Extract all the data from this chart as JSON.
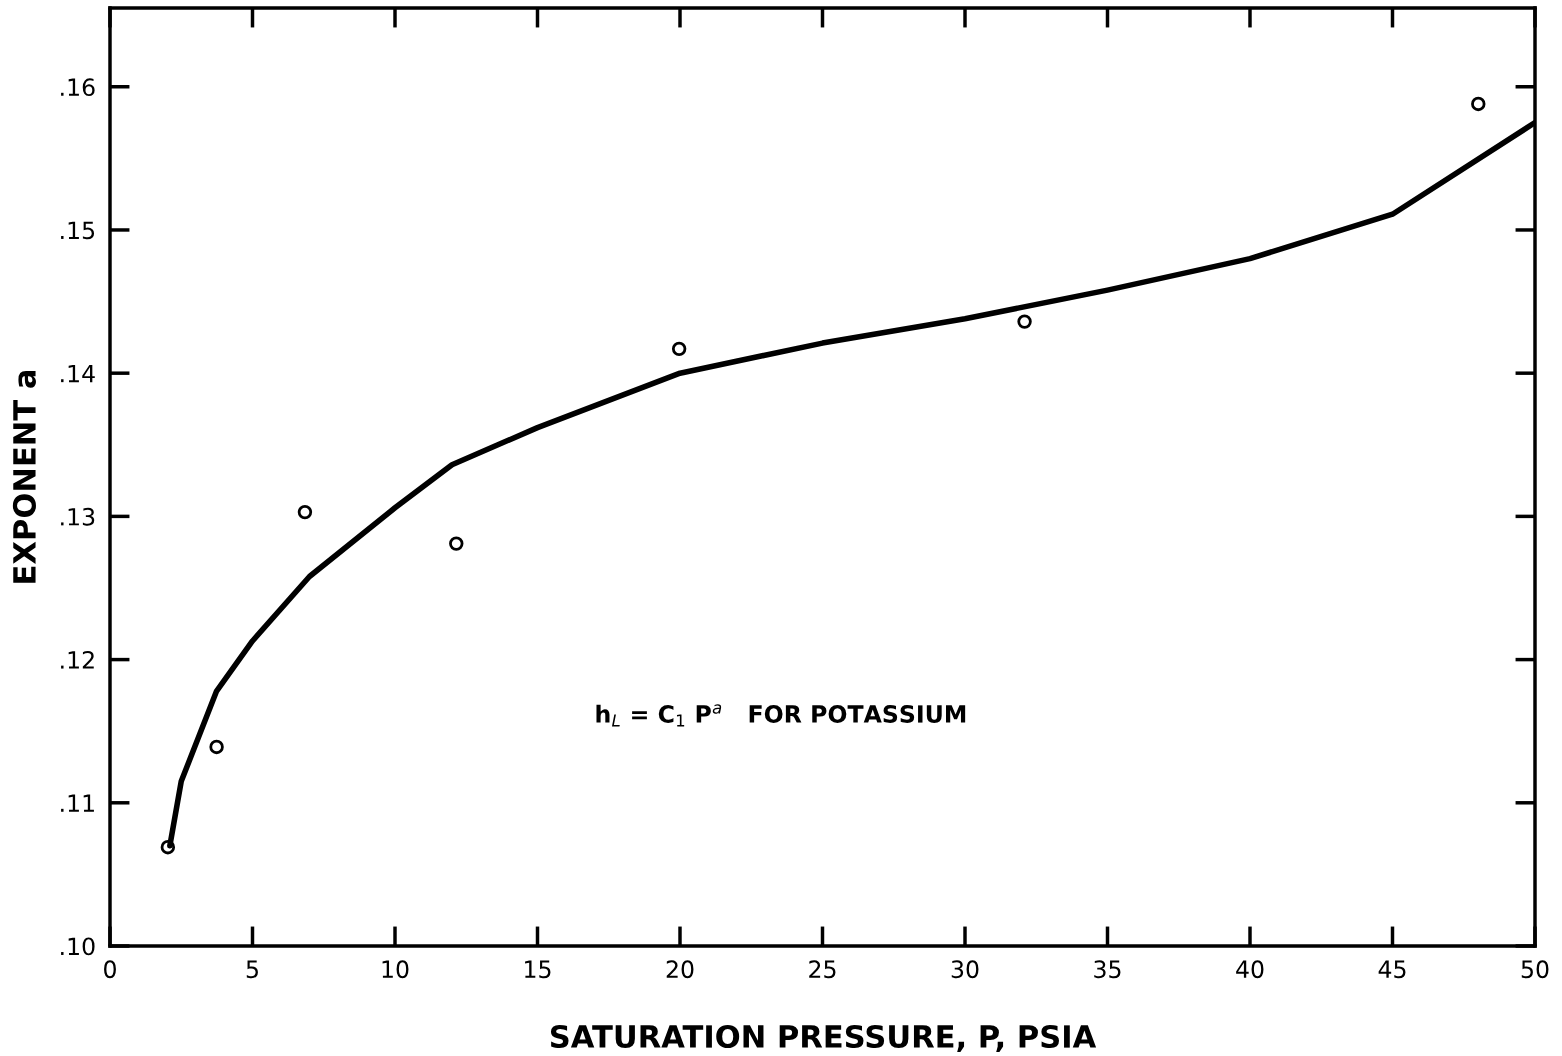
{
  "chart_data": {
    "type": "scatter",
    "xlabel": "SATURATION PRESSURE, P, PSIA",
    "ylabel": "EXPONENT a",
    "annotations": [
      "h$_{L}$ = C$_{1}$ P$^{a}$   FOR POTASSIUM"
    ],
    "series": [
      {
        "color": "#000000",
        "marker": "circle",
        "x": [
          2.03,
          3.74,
          6.84,
          12.15,
          19.97,
          32.09,
          48.01
        ],
        "values": [
          0.1069,
          0.1139,
          0.1303,
          0.1281,
          0.1417,
          0.1436,
          0.1588
        ]
      },
      {
        "type": "line",
        "color": "#000000",
        "marker": "none",
        "x": [
          2.1,
          2.5,
          3.74,
          5,
          7,
          10,
          12,
          15,
          20,
          25,
          30,
          35,
          40,
          45,
          50
        ],
        "values": [
          0.107,
          0.1115,
          0.1178,
          0.1213,
          0.1258,
          0.1306,
          0.1336,
          0.1362,
          0.14,
          0.1421,
          0.1438,
          0.1458,
          0.148,
          0.1511,
          0.1575
        ]
      }
    ],
    "xlim": [
      0,
      50
    ],
    "xticks": [
      0,
      5,
      10,
      15,
      20,
      25,
      30,
      35,
      40,
      45,
      50
    ],
    "ylim": [
      0.1,
      0.1655
    ],
    "yticks": [
      {
        "value": 0.1,
        "label": ".10"
      },
      {
        "value": 0.11,
        "label": ".11"
      },
      {
        "value": 0.12,
        "label": ".12"
      },
      {
        "value": 0.13,
        "label": ".13"
      },
      {
        "value": 0.14,
        "label": ".14"
      },
      {
        "value": 0.15,
        "label": ".15"
      },
      {
        "value": 0.16,
        "label": ".16"
      }
    ],
    "grid": false,
    "legend": false
  }
}
